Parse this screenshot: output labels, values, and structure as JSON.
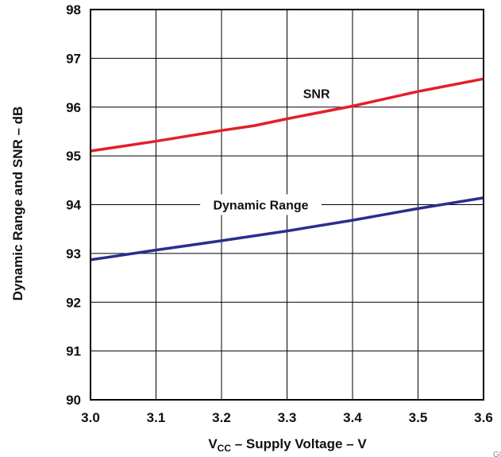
{
  "chart_data": {
    "type": "line",
    "title": "",
    "xlabel": {
      "main": "V",
      "sub": "CC",
      "rest": " – Supply Voltage – V"
    },
    "ylabel": "Dynamic Range and SNR – dB",
    "xlim": [
      3.0,
      3.6
    ],
    "ylim": [
      90,
      98
    ],
    "xticks": [
      "3.0",
      "3.1",
      "3.2",
      "3.3",
      "3.4",
      "3.5",
      "3.6"
    ],
    "yticks": [
      "90",
      "91",
      "92",
      "93",
      "94",
      "95",
      "96",
      "97",
      "98"
    ],
    "grid": true,
    "series": [
      {
        "name": "SNR",
        "color": "#e41e2b",
        "x": [
          3.0,
          3.1,
          3.2,
          3.25,
          3.3,
          3.4,
          3.5,
          3.6
        ],
        "y": [
          95.1,
          95.3,
          95.52,
          95.62,
          95.76,
          96.02,
          96.32,
          96.58
        ]
      },
      {
        "name": "Dynamic Range",
        "color": "#2b2e8c",
        "x": [
          3.0,
          3.1,
          3.2,
          3.3,
          3.4,
          3.5,
          3.6
        ],
        "y": [
          92.87,
          93.07,
          93.26,
          93.46,
          93.68,
          93.92,
          94.14
        ]
      }
    ],
    "annotations": [
      {
        "text": "SNR",
        "x": 3.345,
        "y": 96.28
      },
      {
        "text": "Dynamic Range",
        "x": 3.26,
        "y": 94.0
      }
    ],
    "corner_id": "G0"
  }
}
